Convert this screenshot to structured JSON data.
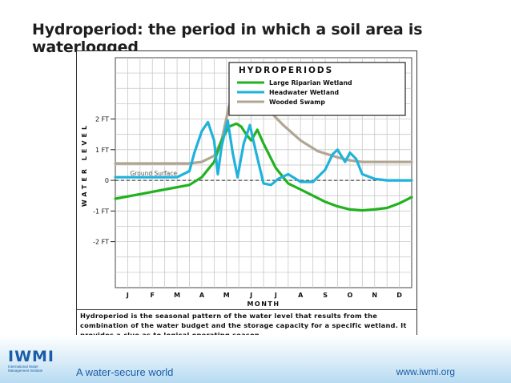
{
  "slide": {
    "title": "Hydroperiod: the period in which a soil area is waterlogged",
    "tagline": "A water-secure world",
    "url": "www.iwmi.org",
    "logo": {
      "mark": "IWMI",
      "sub": "International Water Management Institute"
    }
  },
  "caption": "Hydroperiod is the seasonal pattern of the water level that results from the combination of the water budget and the storage capacity for a specific wetland. It provides a clue as to logical operating season.",
  "colors": {
    "large_riparian": "#22b21f",
    "headwater": "#1fb2dc",
    "wooded_swamp": "#b0a692",
    "grid": "#c8c8c8",
    "brand": "#1a5ca8"
  },
  "chart_data": {
    "type": "line",
    "title": "",
    "legend_title": "HYDROPERIODS",
    "legend_position": "top-right",
    "xlabel": "MONTH",
    "ylabel": "WATER LEVEL",
    "categories": [
      "J",
      "F",
      "M",
      "A",
      "M",
      "J",
      "J",
      "A",
      "S",
      "O",
      "N",
      "D"
    ],
    "x_range": [
      0,
      12
    ],
    "ylim": [
      -3.5,
      4
    ],
    "y_ticks": [
      {
        "value": 2,
        "label": "2 FT"
      },
      {
        "value": 1,
        "label": "1 FT"
      },
      {
        "value": 0,
        "label": "0"
      },
      {
        "value": -1,
        "label": "-1 FT"
      },
      {
        "value": -2,
        "label": "-2 FT"
      }
    ],
    "grid": true,
    "annotations": [
      {
        "text": "Ground Surface",
        "x": 0.6,
        "y": 0.1
      }
    ],
    "series": [
      {
        "name": "Large Riparian Wetland",
        "color": "#22b21f",
        "x": [
          0,
          1,
          2,
          3,
          3.5,
          4,
          4.3,
          4.6,
          4.9,
          5.1,
          5.3,
          5.5,
          5.75,
          6,
          6.5,
          7,
          7.5,
          8,
          8.5,
          9,
          9.5,
          10,
          10.5,
          11,
          11.5,
          12
        ],
        "y": [
          -0.6,
          -0.45,
          -0.3,
          -0.15,
          0.1,
          0.6,
          1.3,
          1.75,
          1.85,
          1.75,
          1.5,
          1.3,
          1.65,
          1.2,
          0.4,
          -0.1,
          -0.3,
          -0.5,
          -0.7,
          -0.85,
          -0.95,
          -0.98,
          -0.95,
          -0.9,
          -0.75,
          -0.55
        ]
      },
      {
        "name": "Headwater Wetland",
        "color": "#1fb2dc",
        "x": [
          0,
          1,
          2,
          2.5,
          3,
          3.2,
          3.5,
          3.75,
          4,
          4.15,
          4.3,
          4.55,
          4.75,
          4.95,
          5.2,
          5.45,
          5.7,
          6,
          6.3,
          6.6,
          7,
          7.5,
          8,
          8.5,
          8.8,
          9,
          9.3,
          9.5,
          9.75,
          10,
          10.5,
          11,
          12
        ],
        "y": [
          0.1,
          0.1,
          0.1,
          0.1,
          0.3,
          0.9,
          1.6,
          1.9,
          1.3,
          0.2,
          1.1,
          1.95,
          0.9,
          0.1,
          1.2,
          1.8,
          0.9,
          -0.1,
          -0.15,
          0.05,
          0.2,
          -0.05,
          -0.05,
          0.35,
          0.85,
          1.0,
          0.6,
          0.9,
          0.7,
          0.2,
          0.05,
          0,
          0
        ]
      },
      {
        "name": "Wooded Swamp",
        "color": "#b0a692",
        "x": [
          0,
          1,
          2,
          3,
          3.5,
          4,
          4.3,
          4.6,
          4.9,
          5.1,
          5.3,
          5.5,
          5.8,
          6.2,
          6.8,
          7.5,
          8.2,
          9,
          9.5,
          10,
          11,
          12
        ],
        "y": [
          0.55,
          0.55,
          0.55,
          0.55,
          0.6,
          0.8,
          1.3,
          2.4,
          3.1,
          3.4,
          3.35,
          3.1,
          2.75,
          2.3,
          1.8,
          1.3,
          0.95,
          0.75,
          0.65,
          0.6,
          0.6,
          0.6
        ]
      }
    ]
  }
}
